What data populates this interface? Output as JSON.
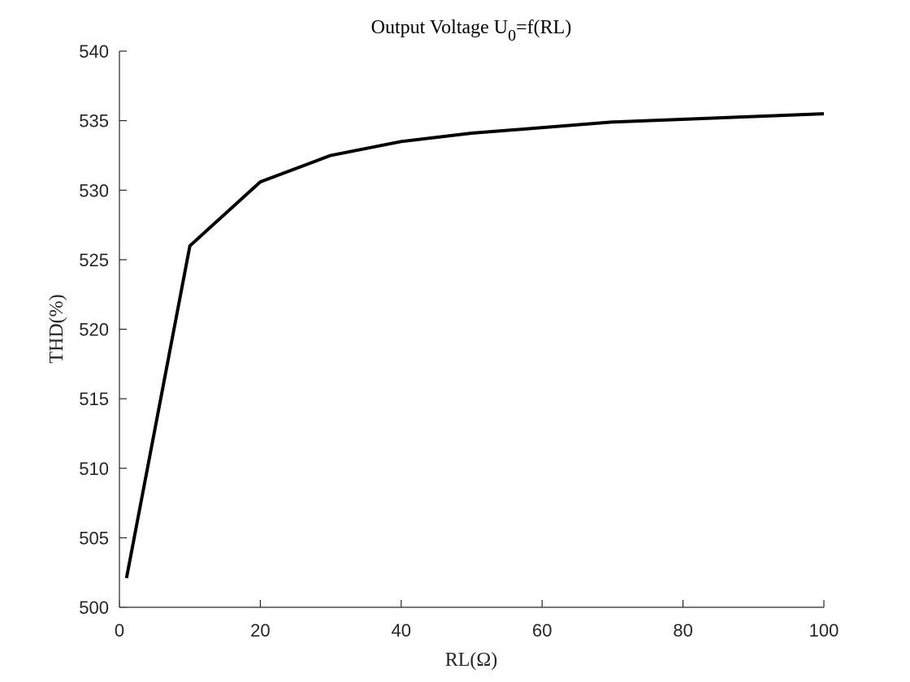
{
  "chart_data": {
    "type": "line",
    "title": {
      "prefix": "Output Voltage U",
      "subscript": "0",
      "suffix": "=f(RL)"
    },
    "xlabel": "RL(Ω)",
    "ylabel": "THD(%)",
    "xlim": [
      0,
      100
    ],
    "ylim": [
      500,
      540
    ],
    "xticks": [
      0,
      20,
      40,
      60,
      80,
      100
    ],
    "yticks": [
      500,
      505,
      510,
      515,
      520,
      525,
      530,
      535,
      540
    ],
    "grid": false,
    "series": [
      {
        "color": "#000000",
        "x": [
          1,
          10,
          20,
          30,
          40,
          50,
          70,
          100
        ],
        "y": [
          502.1,
          526.0,
          530.6,
          532.5,
          533.5,
          534.1,
          534.9,
          535.5
        ]
      }
    ]
  }
}
